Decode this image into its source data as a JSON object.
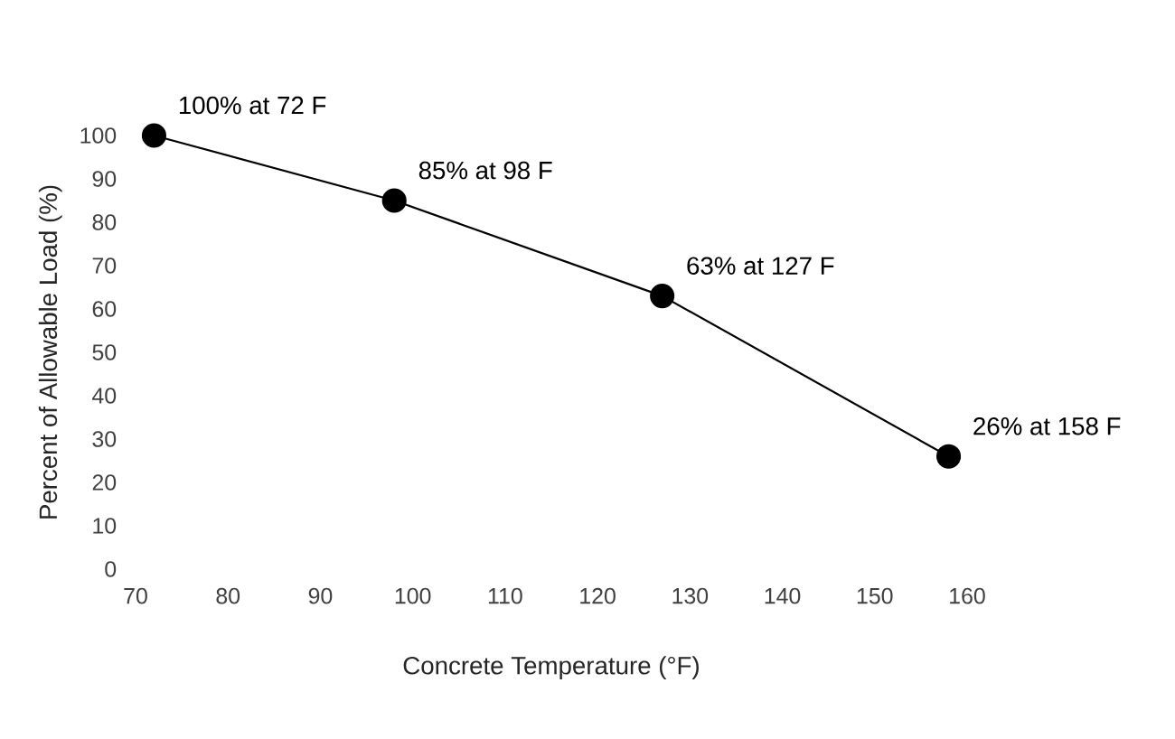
{
  "chart_data": {
    "type": "line",
    "xlabel": "Concrete Temperature (°F)",
    "ylabel": "Percent of Allowable Load (%)",
    "x": [
      72,
      98,
      127,
      158
    ],
    "series": [
      {
        "color": "#000000",
        "values": [
          100,
          85,
          63,
          26
        ]
      }
    ],
    "xlim": [
      70,
      160
    ],
    "ylim": [
      0,
      100
    ],
    "xticks": [
      70,
      80,
      90,
      100,
      110,
      120,
      130,
      140,
      150,
      160
    ],
    "yticks": [
      0,
      10,
      20,
      30,
      40,
      50,
      60,
      70,
      80,
      90,
      100
    ],
    "marker": "circle",
    "line_style": "solid",
    "grid": false,
    "annotations": [
      {
        "text": "100% at 72 F",
        "x": 72,
        "y": 100
      },
      {
        "text": "85% at 98 F",
        "x": 98,
        "y": 85
      },
      {
        "text": "63% at 127 F",
        "x": 127,
        "y": 63
      },
      {
        "text": "26% at 158 F",
        "x": 158,
        "y": 26
      }
    ]
  }
}
